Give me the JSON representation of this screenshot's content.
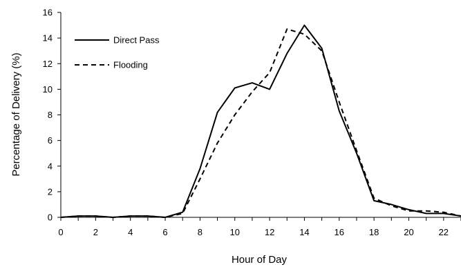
{
  "chart_data": {
    "type": "line",
    "title": "",
    "xlabel": "Hour of Day",
    "ylabel": "Percentage of Delivery (%)",
    "xlim": [
      0,
      23
    ],
    "ylim": [
      0,
      16
    ],
    "x_ticks": [
      0,
      2,
      4,
      6,
      8,
      10,
      12,
      14,
      16,
      18,
      20,
      22
    ],
    "y_ticks": [
      0,
      2,
      4,
      6,
      8,
      10,
      12,
      14,
      16
    ],
    "grid": false,
    "legend_position": "top-left",
    "series": [
      {
        "name": "Direct Pass",
        "style": "solid",
        "color": "#000000",
        "x": [
          0,
          1,
          2,
          3,
          4,
          5,
          6,
          7,
          8,
          9,
          10,
          11,
          12,
          13,
          14,
          15,
          16,
          17,
          18,
          19,
          20,
          21,
          22,
          23
        ],
        "values": [
          0.0,
          0.1,
          0.1,
          0.0,
          0.1,
          0.1,
          0.0,
          0.4,
          3.8,
          8.2,
          10.1,
          10.5,
          10.0,
          12.8,
          15.0,
          13.2,
          8.3,
          5.0,
          1.3,
          1.0,
          0.6,
          0.3,
          0.3,
          0.1
        ]
      },
      {
        "name": "Flooding",
        "style": "dashed",
        "color": "#000000",
        "x": [
          0,
          1,
          2,
          3,
          4,
          5,
          6,
          7,
          8,
          9,
          10,
          11,
          12,
          13,
          14,
          15,
          16,
          17,
          18,
          19,
          20,
          21,
          22,
          23
        ],
        "values": [
          0.0,
          0.1,
          0.1,
          0.0,
          0.1,
          0.1,
          0.0,
          0.3,
          3.0,
          5.8,
          8.0,
          9.8,
          11.3,
          14.7,
          14.3,
          13.0,
          9.0,
          5.2,
          1.5,
          0.9,
          0.5,
          0.5,
          0.4,
          0.1
        ]
      }
    ]
  }
}
